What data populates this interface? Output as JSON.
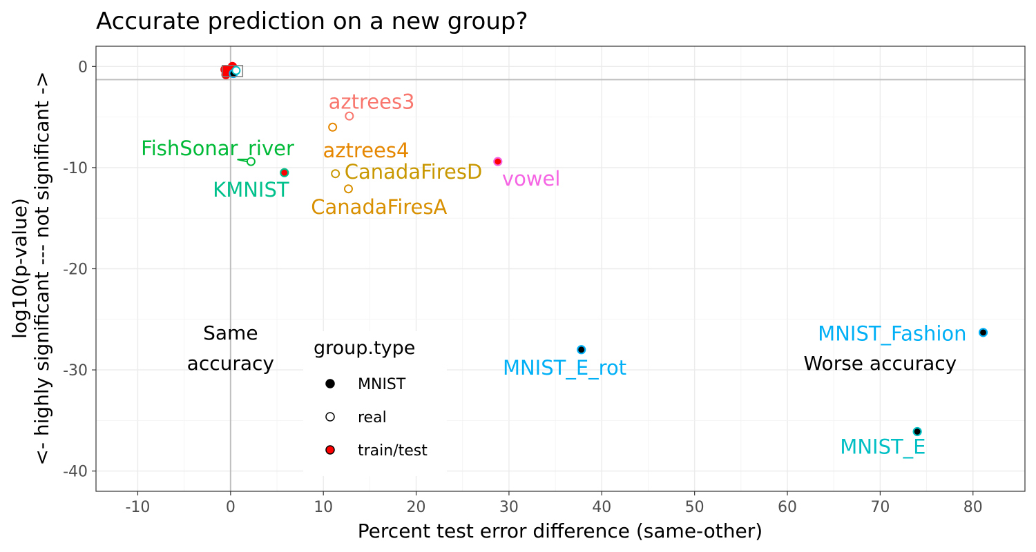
{
  "chart_data": {
    "type": "scatter",
    "title": "Accurate prediction on a new group?",
    "xlabel": "Percent test error difference (same-other)",
    "ylabel_lines": [
      "log10(p-value)",
      "<- highly significant --- not significant ->"
    ],
    "xlim": [
      -14.5,
      85.6
    ],
    "ylim": [
      -42,
      2
    ],
    "x_ticks": [
      -10,
      0,
      10,
      20,
      30,
      40,
      50,
      60,
      70,
      80
    ],
    "x_tick_labels": [
      "-10",
      "0",
      "10",
      "20",
      "30",
      "40",
      "50",
      "60",
      "70",
      "80"
    ],
    "y_ticks": [
      0,
      -10,
      -20,
      -30,
      -40
    ],
    "y_tick_labels": [
      "0",
      "-10",
      "-20",
      "-30",
      "-40"
    ],
    "grid": true,
    "reference_lines": {
      "vertical_x": 0,
      "horizontal_y": -1.3
    },
    "points": [
      {
        "label": "aztrees3",
        "x": 12.8,
        "y": -4.9,
        "group_type": "real",
        "color": "#f8766d",
        "label_x": 15.2,
        "label_y": -3.5,
        "anchor": "middle"
      },
      {
        "label": "aztrees4",
        "x": 11.0,
        "y": -6.0,
        "group_type": "real",
        "color": "#e58700",
        "label_x": 14.6,
        "label_y": -8.3,
        "anchor": "middle"
      },
      {
        "label": "FishSonar_river",
        "x": 2.2,
        "y": -9.4,
        "group_type": "real",
        "color": "#00ba38",
        "label_x": -1.4,
        "label_y": -8.1,
        "anchor": "middle"
      },
      {
        "label": "KMNIST",
        "x": 5.8,
        "y": -10.5,
        "group_type": "train/test",
        "color": "#00c08b",
        "label_x": 2.2,
        "label_y": -12.2,
        "anchor": "middle"
      },
      {
        "label": "CanadaFiresD",
        "x": 11.3,
        "y": -10.6,
        "group_type": "real",
        "color": "#c99800",
        "label_x": 19.7,
        "label_y": -10.4,
        "anchor": "middle"
      },
      {
        "label": "CanadaFiresA",
        "x": 12.7,
        "y": -12.1,
        "group_type": "real",
        "color": "#d89000",
        "label_x": 16.0,
        "label_y": -13.9,
        "anchor": "middle"
      },
      {
        "label": "vowel",
        "x": 28.8,
        "y": -9.4,
        "group_type": "train/test",
        "color": "#f564e3",
        "label_x": 32.4,
        "label_y": -11.1,
        "anchor": "middle"
      },
      {
        "label": "MNIST_E_rot",
        "x": 37.8,
        "y": -28.0,
        "group_type": "MNIST",
        "color": "#00b0f6",
        "label_x": 36.0,
        "label_y": -29.8,
        "anchor": "middle"
      },
      {
        "label": "MNIST_Fashion",
        "x": 81.1,
        "y": -26.3,
        "group_type": "MNIST",
        "color": "#00b0f6",
        "label_x": 71.3,
        "label_y": -26.4,
        "anchor": "middle"
      },
      {
        "label": "MNIST_E",
        "x": 74.0,
        "y": -36.1,
        "group_type": "MNIST",
        "color": "#00bfc4",
        "label_x": 70.3,
        "label_y": -37.6,
        "anchor": "middle"
      }
    ],
    "cluster_points": [
      {
        "x": -0.6,
        "y": -0.3,
        "group_type": "train/test",
        "color": "#ff0000"
      },
      {
        "x": -0.5,
        "y": -0.8,
        "group_type": "train/test",
        "color": "#ff0000"
      },
      {
        "x": 0.2,
        "y": 0.0,
        "group_type": "train/test",
        "color": "#ff0000"
      },
      {
        "x": 0.1,
        "y": -0.5,
        "group_type": "train/test",
        "color": "#ff0000"
      },
      {
        "x": 0.3,
        "y": -0.7,
        "group_type": "MNIST",
        "color": "#00b0f6"
      },
      {
        "x": 0.6,
        "y": -0.4,
        "group_type": "real",
        "color": "#00bfc4"
      }
    ],
    "annotations": [
      {
        "text": "Same",
        "x": 0,
        "y": -26.3
      },
      {
        "text": "accuracy",
        "x": 0,
        "y": -29.3
      },
      {
        "text": "Worse accuracy",
        "x": 70,
        "y": -29.3
      }
    ],
    "legend": {
      "title": "group.type",
      "placement": "inside-bottom-left",
      "items": [
        {
          "label": "MNIST",
          "shape": "filled-circle",
          "fill": "#000000"
        },
        {
          "label": "real",
          "shape": "open-circle",
          "fill": "#ffffff"
        },
        {
          "label": "train/test",
          "shape": "filled-circle",
          "fill": "#ff0000"
        }
      ]
    }
  }
}
